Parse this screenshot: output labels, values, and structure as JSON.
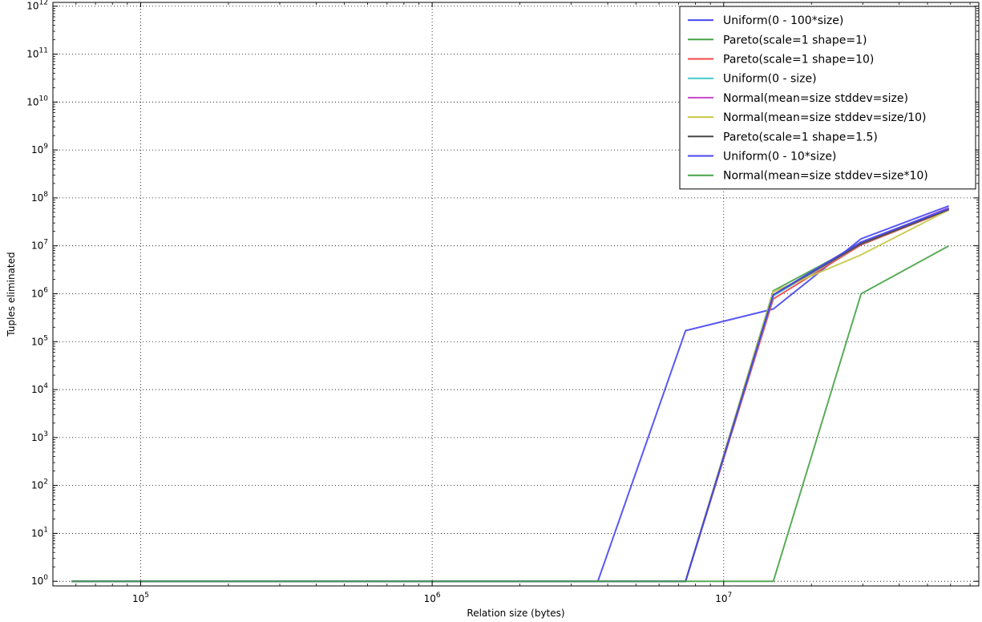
{
  "chart_data": {
    "type": "line",
    "title": "",
    "xlabel": "Relation size (bytes)",
    "ylabel": "Tuples eliminated",
    "x_scale": "log",
    "y_scale": "log",
    "xlim": [
      50000,
      75000000
    ],
    "ylim": [
      0.8,
      1200000000000.0
    ],
    "x_ticks": [
      {
        "value": 100000,
        "base": "10",
        "exp": "5"
      },
      {
        "value": 1000000,
        "base": "10",
        "exp": "6"
      },
      {
        "value": 10000000,
        "base": "10",
        "exp": "7"
      }
    ],
    "y_ticks": [
      {
        "value": 1,
        "base": "10",
        "exp": "0"
      },
      {
        "value": 10,
        "base": "10",
        "exp": "1"
      },
      {
        "value": 100,
        "base": "10",
        "exp": "2"
      },
      {
        "value": 1000,
        "base": "10",
        "exp": "3"
      },
      {
        "value": 10000,
        "base": "10",
        "exp": "4"
      },
      {
        "value": 100000,
        "base": "10",
        "exp": "5"
      },
      {
        "value": 1000000,
        "base": "10",
        "exp": "6"
      },
      {
        "value": 10000000,
        "base": "10",
        "exp": "7"
      },
      {
        "value": 100000000,
        "base": "10",
        "exp": "8"
      },
      {
        "value": 1000000000,
        "base": "10",
        "exp": "9"
      },
      {
        "value": 10000000000,
        "base": "10",
        "exp": "10"
      },
      {
        "value": 100000000000,
        "base": "10",
        "exp": "11"
      },
      {
        "value": 1000000000000,
        "base": "10",
        "exp": "12"
      }
    ],
    "grid": true,
    "legend_position": "top-right",
    "x": [
      58000,
      3700000,
      7400000,
      14800000,
      29600000,
      59200000
    ],
    "series": [
      {
        "name": "Uniform(0 - 100*size)",
        "color": "#4747f0",
        "values": [
          1,
          1,
          170000,
          480000,
          14000000,
          68000000
        ]
      },
      {
        "name": "Pareto(scale=1 shape=1)",
        "color": "#47a347",
        "values": [
          1,
          1,
          1,
          1150000,
          11000000,
          58000000
        ]
      },
      {
        "name": "Pareto(scale=1 shape=10)",
        "color": "#f04747",
        "values": [
          1,
          1,
          1,
          780000,
          10500000,
          56000000
        ]
      },
      {
        "name": "Uniform(0 - size)",
        "color": "#47c8c8",
        "values": [
          1,
          1,
          1,
          900000,
          11000000,
          58000000
        ]
      },
      {
        "name": "Normal(mean=size stddev=size)",
        "color": "#c847c8",
        "values": [
          1,
          1,
          1,
          950000,
          11500000,
          62000000
        ]
      },
      {
        "name": "Normal(mean=size stddev=size/10)",
        "color": "#c8c847",
        "values": [
          1,
          1,
          1,
          1100000,
          6500000,
          56000000
        ]
      },
      {
        "name": "Pareto(scale=1 shape=1.5)",
        "color": "#474747",
        "values": [
          1,
          1,
          1,
          950000,
          11000000,
          57000000
        ]
      },
      {
        "name": "Uniform(0 - 10*size)",
        "color": "#4747f0",
        "values": [
          1,
          1,
          1,
          950000,
          12000000,
          60000000
        ]
      },
      {
        "name": "Normal(mean=size stddev=size*10)",
        "color": "#47a347",
        "values": [
          1,
          1,
          1,
          1,
          1000000,
          10000000
        ]
      }
    ]
  }
}
